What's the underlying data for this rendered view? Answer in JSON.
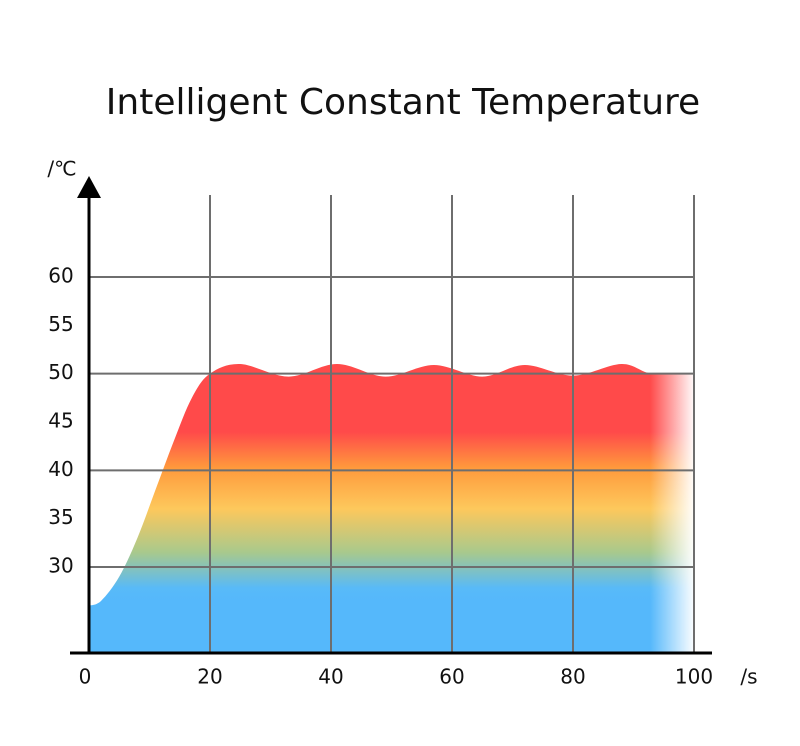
{
  "chart_data": {
    "type": "area",
    "title": "Intelligent Constant Temperature",
    "x_label": "/s",
    "y_label": "/℃",
    "x": [
      0,
      2,
      5,
      8,
      11,
      14,
      17,
      20,
      25,
      33,
      41,
      49,
      57,
      65,
      72,
      80,
      88,
      93,
      100
    ],
    "values": [
      26,
      26.5,
      29,
      33,
      38,
      43,
      47.5,
      50,
      51,
      49.7,
      51,
      49.7,
      50.9,
      49.7,
      50.9,
      49.8,
      51,
      50,
      50
    ],
    "xlim": [
      0,
      100
    ],
    "ylim": [
      21,
      69
    ],
    "xticks": [
      0,
      20,
      40,
      60,
      80,
      100
    ],
    "yticks": [
      30,
      35,
      40,
      45,
      50,
      55,
      60
    ],
    "ygrid": [
      30,
      40,
      50,
      60
    ],
    "grid": true
  }
}
